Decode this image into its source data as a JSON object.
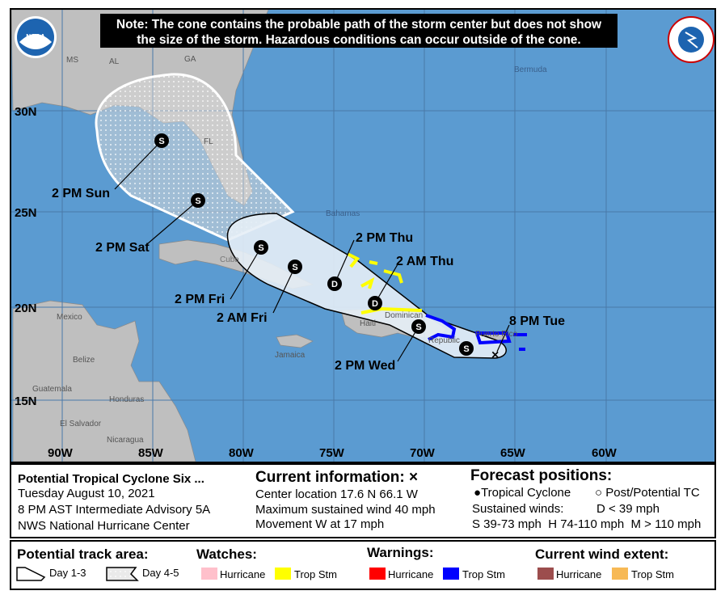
{
  "note": [
    "Note: The cone contains the probable path of the storm center but does not show",
    "the size of the storm. Hazardous conditions can occur outside of the cone."
  ],
  "logos": {
    "left": "NOAA",
    "right": "NATIONAL WEATHER SERVICE"
  },
  "map": {
    "lon_labels": [
      "90W",
      "85W",
      "80W",
      "75W",
      "70W",
      "65W",
      "60W"
    ],
    "lat_labels": [
      "30N",
      "25N",
      "20N",
      "15N"
    ],
    "places": {
      "ms": "MS",
      "al": "AL",
      "ga": "GA",
      "fl": "FL",
      "bermuda": "Bermuda",
      "bahamas": "Bahamas",
      "cuba": "Cuba",
      "mexico": "Mexico",
      "belize": "Belize",
      "guatemala": "Guatemala",
      "honduras": "Honduras",
      "el_salvador": "El Salvador",
      "nicaragua": "Nicaragua",
      "jamaica": "Jamaica",
      "haiti": "Haiti",
      "dominican": "Dominican",
      "republic": "Republic",
      "puerto_rico": "Puerto Rico"
    },
    "track": [
      {
        "time": "8 PM Tue",
        "type": "X"
      },
      {
        "time": "",
        "type": "S"
      },
      {
        "time": "2 PM Wed",
        "type": "S"
      },
      {
        "time": "2 AM Thu",
        "type": "D"
      },
      {
        "time": "2 PM Thu",
        "type": "D"
      },
      {
        "time": "2 AM Fri",
        "type": "S"
      },
      {
        "time": "2 PM Fri",
        "type": "S"
      },
      {
        "time": "2 PM Sat",
        "type": "S"
      },
      {
        "time": "2 PM Sun",
        "type": "S"
      }
    ],
    "colors": {
      "ocean": "#5b9bd1",
      "land": "#bfbfbf",
      "cone": "#e6eef6",
      "watch_ts": "#ffff00",
      "warning_ts": "#0000ff"
    }
  },
  "info": {
    "storm": "Potential Tropical Cyclone Six ...",
    "date": "Tuesday August 10, 2021",
    "advisory": "8 PM AST Intermediate Advisory 5A",
    "center": "NWS National Hurricane Center",
    "current_title": "Current information: ×",
    "location": "Center location 17.6 N 66.1 W",
    "wind": "Maximum sustained wind 40 mph",
    "movement": "Movement W at 17 mph",
    "forecast_title": "Forecast positions:",
    "tc": "Tropical Cyclone",
    "ptc": "Post/Potential TC",
    "sustained": "Sustained winds:",
    "d": "D < 39 mph",
    "shm": "S 39-73 mph  H 74-110 mph  M > 110 mph"
  },
  "legend": {
    "track_title": "Potential track area:",
    "day13": "Day 1-3",
    "day45": "Day 4-5",
    "watches_title": "Watches:",
    "warnings_title": "Warnings:",
    "wind_title": "Current wind extent:",
    "hurricane": "Hurricane",
    "trop_stm": "Trop Stm",
    "colors": {
      "watch_hu": "#ffc0cb",
      "watch_ts": "#ffff00",
      "warn_hu": "#ff0000",
      "warn_ts": "#0000ff",
      "wind_hu": "#9c4d4d",
      "wind_ts": "#f7b955"
    }
  }
}
